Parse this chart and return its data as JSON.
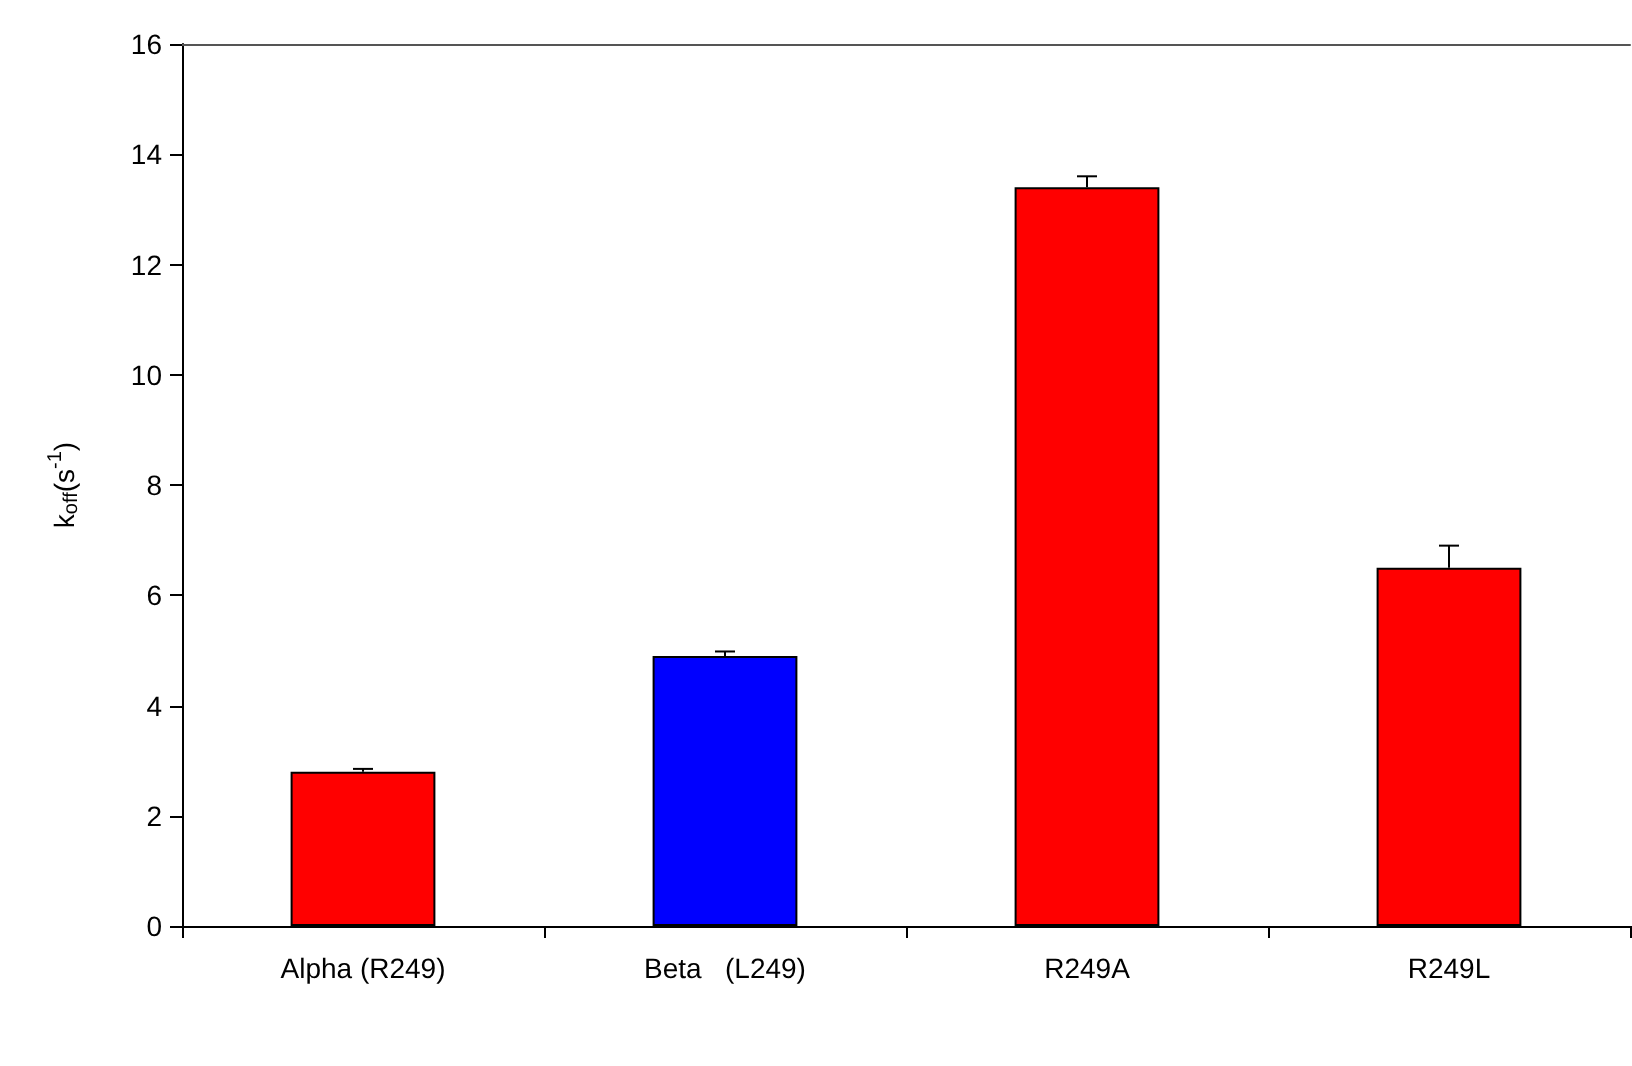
{
  "chart_data": {
    "type": "bar",
    "ylabel": "k$_{off}$(s$^{-1}$)",
    "categories": [
      "Alpha (R249)",
      "Beta   (L249)",
      "R249A",
      "R249L"
    ],
    "values": [
      2.8,
      4.9,
      13.4,
      6.5
    ],
    "colors": [
      "#ff0000",
      "#0000ff",
      "#ff0000",
      "#ff0000"
    ],
    "errors": [
      [
        2.8,
        2.85
      ],
      [
        4.9,
        4.98
      ],
      [
        13.4,
        13.6
      ],
      [
        6.5,
        6.9
      ]
    ],
    "ylim": [
      0,
      16
    ],
    "yticks": [
      0,
      2,
      4,
      6,
      8,
      10,
      12,
      14,
      16
    ]
  }
}
